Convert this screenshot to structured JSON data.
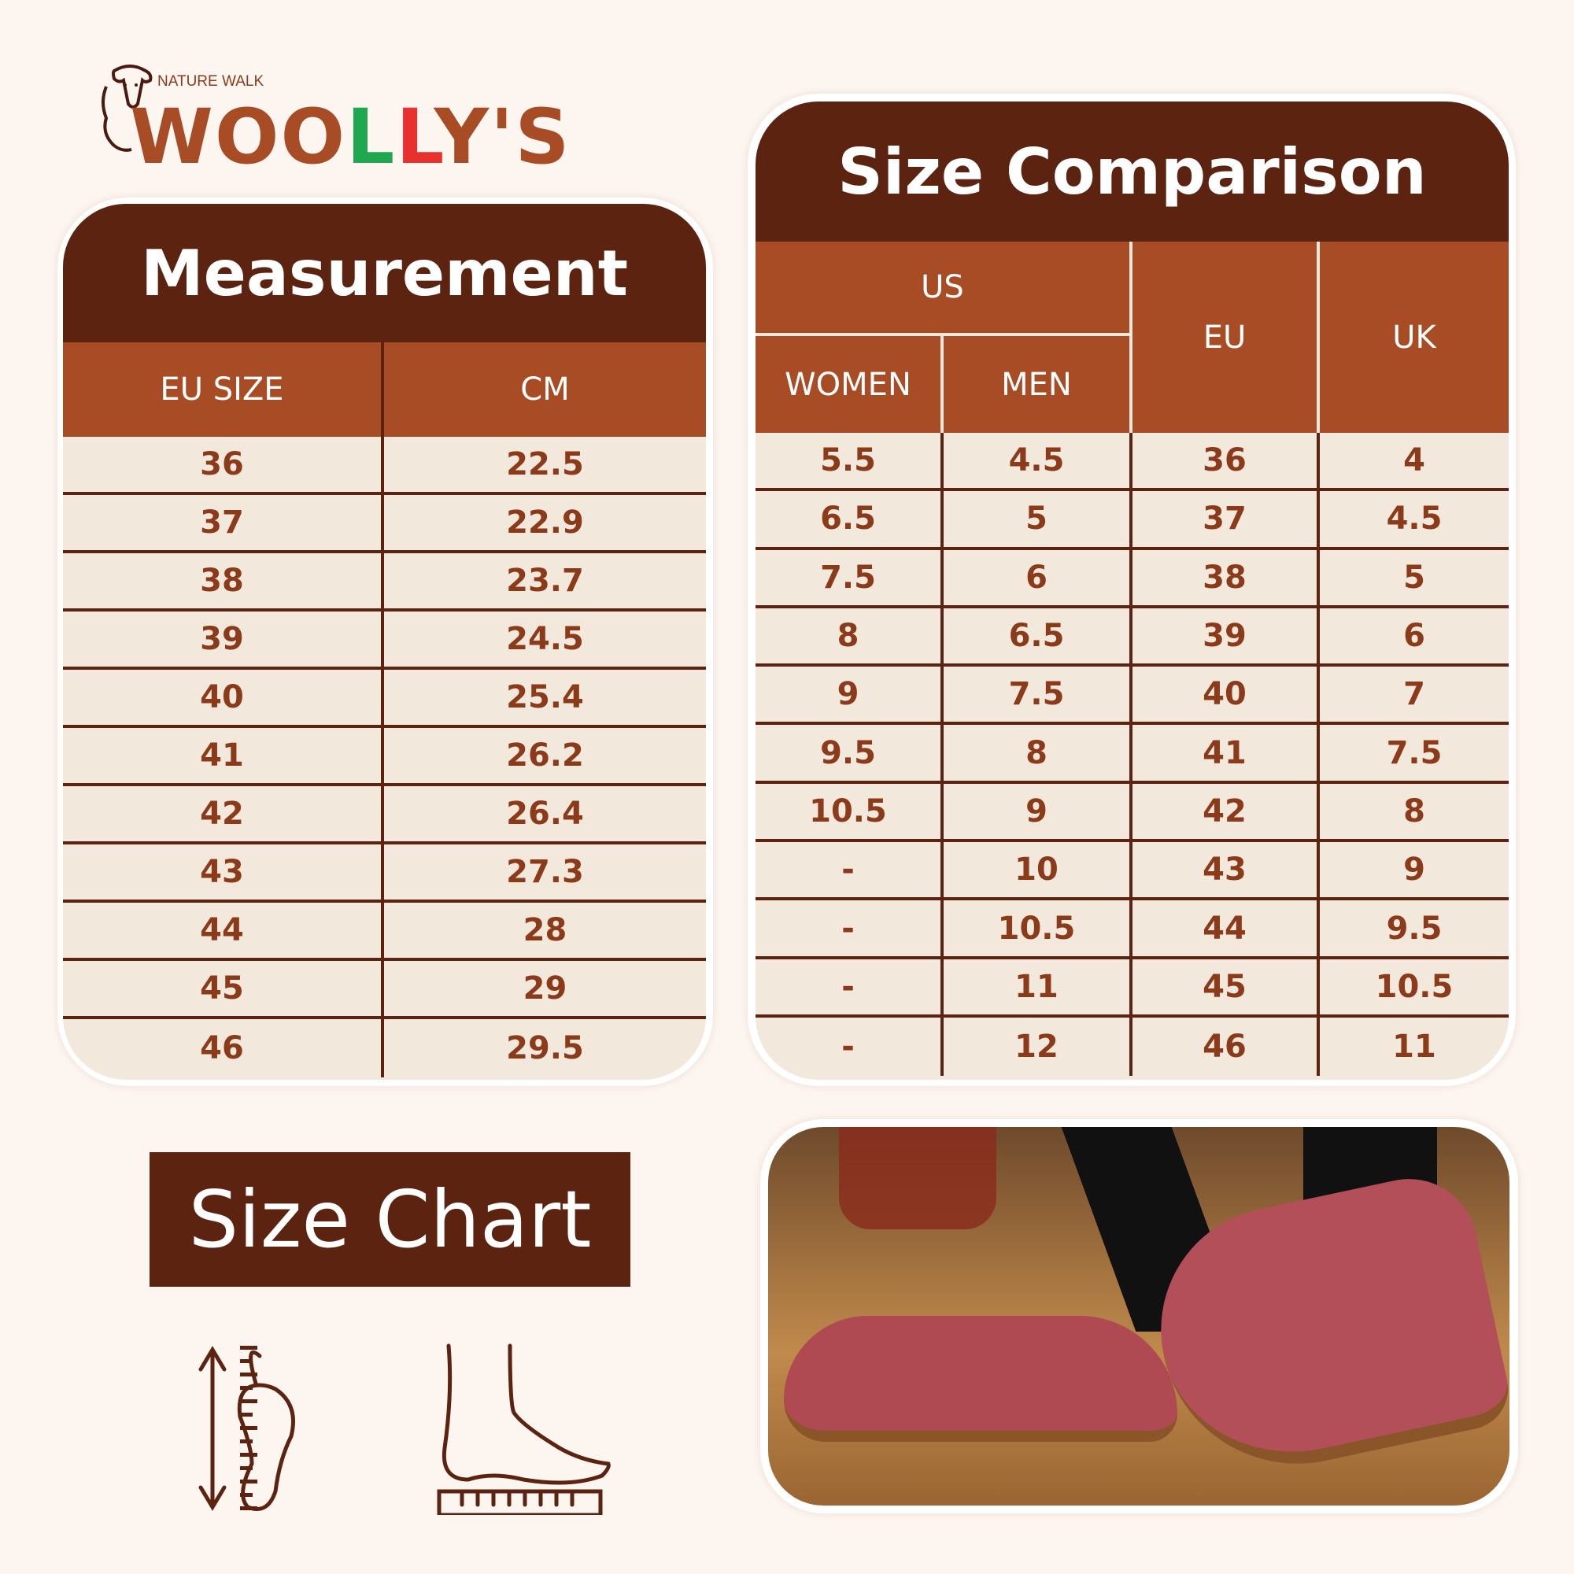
{
  "logo": {
    "tagline": "NATURE WALK",
    "brand_parts": [
      "WOO",
      "L",
      "L",
      "Y'S"
    ]
  },
  "colors": {
    "background": "#fdf5f0",
    "dark_brown": "#5c2410",
    "rust": "#a84c26",
    "row": "#f3e8dc",
    "logo_green": "#1fa84f",
    "logo_red": "#e8302f"
  },
  "measurement": {
    "title": "Measurement",
    "headers": [
      "EU SIZE",
      "CM"
    ],
    "rows": [
      [
        "36",
        "22.5"
      ],
      [
        "37",
        "22.9"
      ],
      [
        "38",
        "23.7"
      ],
      [
        "39",
        "24.5"
      ],
      [
        "40",
        "25.4"
      ],
      [
        "41",
        "26.2"
      ],
      [
        "42",
        "26.4"
      ],
      [
        "43",
        "27.3"
      ],
      [
        "44",
        "28"
      ],
      [
        "45",
        "29"
      ],
      [
        "46",
        "29.5"
      ]
    ]
  },
  "comparison": {
    "title": "Size Comparison",
    "group_header": "US",
    "headers": [
      "WOMEN",
      "MEN",
      "EU",
      "UK"
    ],
    "rows": [
      [
        "5.5",
        "4.5",
        "36",
        "4"
      ],
      [
        "6.5",
        "5",
        "37",
        "4.5"
      ],
      [
        "7.5",
        "6",
        "38",
        "5"
      ],
      [
        "8",
        "6.5",
        "39",
        "6"
      ],
      [
        "9",
        "7.5",
        "40",
        "7"
      ],
      [
        "9.5",
        "8",
        "41",
        "7.5"
      ],
      [
        "10.5",
        "9",
        "42",
        "8"
      ],
      [
        "-",
        "10",
        "43",
        "9"
      ],
      [
        "-",
        "10.5",
        "44",
        "9.5"
      ],
      [
        "-",
        "11",
        "45",
        "10.5"
      ],
      [
        "-",
        "12",
        "46",
        "11"
      ]
    ]
  },
  "size_chart_label": "Size Chart",
  "icons": [
    "foot-length-ruler-icon",
    "foot-side-ruler-icon"
  ]
}
